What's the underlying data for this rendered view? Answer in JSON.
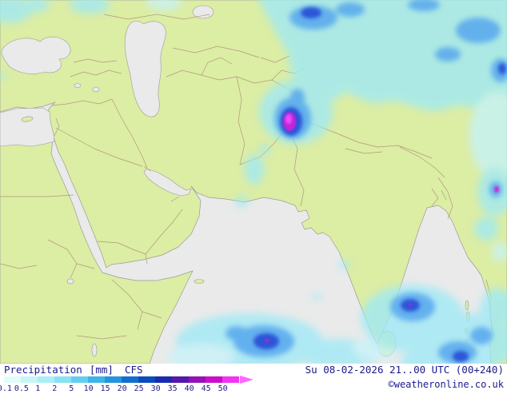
{
  "legend": {
    "parameter": "Precipitation",
    "unit": "[mm]",
    "model": "CFS",
    "scale": {
      "labels": [
        "0.1",
        "0.5",
        "1",
        "2",
        "5",
        "10",
        "15",
        "20",
        "25",
        "30",
        "35",
        "40",
        "45",
        "50"
      ],
      "colors": [
        "#e2fbfb",
        "#c8f5f6",
        "#abeef5",
        "#8ae1f2",
        "#63cdee",
        "#3fb4e8",
        "#2595dd",
        "#136fce",
        "#0a4cbe",
        "#1a2bb0",
        "#5618aa",
        "#9412b8",
        "#cc0ecc",
        "#f233f2"
      ],
      "arrow_color": "#ff66ff"
    }
  },
  "footer": {
    "valid_time": "Su 08-02-2026 21..00 UTC (00+240)",
    "copyright": "©weatheronline.co.uk"
  },
  "map": {
    "description": "CFS precipitation forecast map over Middle East, Central Asia, India and Indian Ocean",
    "colors": {
      "land": "#dcedा4",
      "sea": "#eaeaea",
      "border": "#ab9076",
      "text": "#1a1a8c"
    }
  }
}
